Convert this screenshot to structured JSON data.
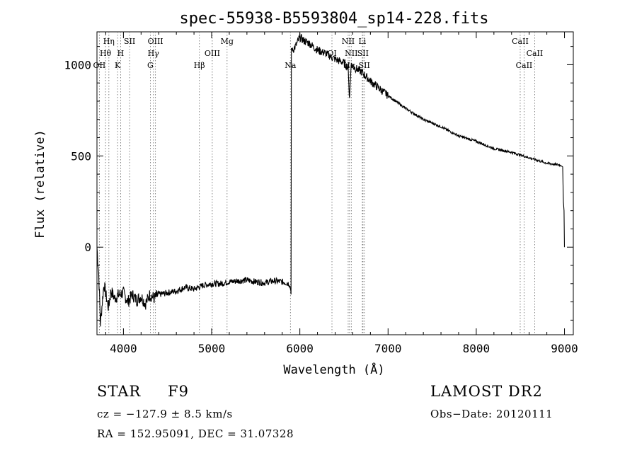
{
  "chart_data": {
    "type": "line",
    "title": "spec-55938-B5593804_sp14-228.fits",
    "xlabel": "Wavelength (Å)",
    "ylabel": "Flux (relative)",
    "xlim": [
      3700,
      9100
    ],
    "ylim": [
      -480,
      1180
    ],
    "x_ticks": [
      4000,
      5000,
      6000,
      7000,
      8000,
      9000
    ],
    "y_ticks": [
      0,
      500,
      1000
    ],
    "grid": false,
    "series": [
      {
        "x": [
          3700,
          3720,
          3740,
          3760,
          3780,
          3800,
          3830,
          3860,
          3900,
          3950,
          4000,
          4050,
          4100,
          4150,
          4200,
          4250,
          4300,
          4350,
          4400,
          4500,
          4600,
          4700,
          4800,
          4900,
          5000,
          5100,
          5200,
          5300,
          5400,
          5500,
          5600,
          5700,
          5800,
          5880,
          5895,
          5900,
          5920,
          5950,
          6000,
          6050,
          6100,
          6150,
          6200,
          6300,
          6400,
          6500,
          6550,
          6563,
          6580,
          6600,
          6700,
          6800,
          6900,
          7000,
          7200,
          7400,
          7600,
          7800,
          8000,
          8200,
          8400,
          8600,
          8800,
          8950,
          8980,
          8990,
          9000
        ],
        "y": [
          0,
          -150,
          -420,
          -300,
          -200,
          -260,
          -330,
          -240,
          -280,
          -260,
          -250,
          -300,
          -260,
          -290,
          -270,
          -310,
          -260,
          -280,
          -260,
          -250,
          -240,
          -220,
          -230,
          -210,
          -200,
          -200,
          -190,
          -185,
          -180,
          -190,
          -195,
          -185,
          -190,
          -200,
          -230,
          -240,
          1080,
          1100,
          1150,
          1130,
          1120,
          1100,
          1080,
          1060,
          1030,
          1010,
          980,
          800,
          1000,
          990,
          960,
          910,
          870,
          830,
          760,
          700,
          660,
          610,
          580,
          540,
          520,
          490,
          460,
          450,
          440,
          200,
          0
        ]
      }
    ],
    "lines": [
      {
        "name": "Hη",
        "x": 3835,
        "row": 1
      },
      {
        "name": "Hθ",
        "x": 3797,
        "row": 2
      },
      {
        "name": "OII",
        "x": 3727,
        "row": 3
      },
      {
        "name": "SII",
        "x": 4070,
        "row": 1
      },
      {
        "name": "H",
        "x": 3968,
        "row": 2
      },
      {
        "name": "K",
        "x": 3934,
        "row": 3
      },
      {
        "name": "OIII",
        "x": 4363,
        "row": 1
      },
      {
        "name": "Hγ",
        "x": 4340,
        "row": 2
      },
      {
        "name": "G",
        "x": 4305,
        "row": 3
      },
      {
        "name": "Mg",
        "x": 5175,
        "row": 1
      },
      {
        "name": "OIII",
        "x": 5007,
        "row": 2
      },
      {
        "name": "Hβ",
        "x": 4861,
        "row": 3
      },
      {
        "name": "Na",
        "x": 5893,
        "row": 3
      },
      {
        "name": "NII",
        "x": 6548,
        "row": 1
      },
      {
        "name": "Li",
        "x": 6708,
        "row": 1
      },
      {
        "name": "OI",
        "x": 6364,
        "row": 2
      },
      {
        "name": "NII",
        "x": 6583,
        "row": 2
      },
      {
        "name": "SII",
        "x": 6716,
        "row": 2
      },
      {
        "name": "Hα",
        "x": 6563,
        "row": 3
      },
      {
        "name": "SII",
        "x": 6731,
        "row": 3
      },
      {
        "name": "CaII",
        "x": 8498,
        "row": 1
      },
      {
        "name": "CaII",
        "x": 8662,
        "row": 2
      },
      {
        "name": "CaII",
        "x": 8542,
        "row": 3
      }
    ]
  },
  "info": {
    "object": "STAR",
    "subclass": "F9",
    "survey": "LAMOST DR2",
    "cz": "cz = −127.9 ± 8.5 km/s",
    "obs_date": "Obs−Date: 20120111",
    "coords": "RA = 152.95091, DEC =  31.07328"
  }
}
